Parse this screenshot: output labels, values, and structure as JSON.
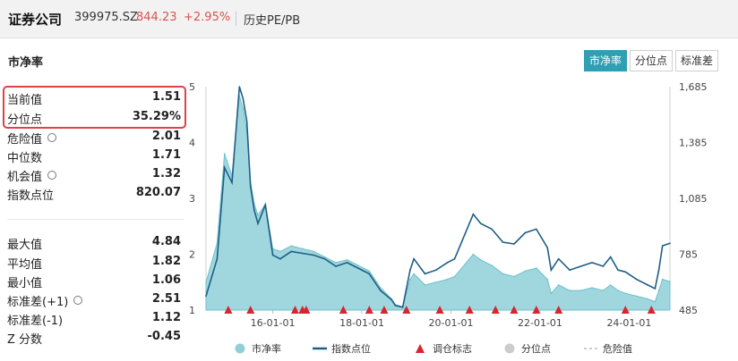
{
  "header": {
    "name": "证券公司",
    "code": "399975.SZ",
    "price": "844.23",
    "change": "+2.95%",
    "tab": "历史PE/PB"
  },
  "section_title": "市净率",
  "tabs": [
    {
      "label": "市净率",
      "active": true
    },
    {
      "label": "分位点",
      "active": false
    },
    {
      "label": "标准差",
      "active": false
    }
  ],
  "stats": {
    "current": {
      "label": "当前值",
      "value": "1.51"
    },
    "percentile": {
      "label": "分位点",
      "value": "35.29%"
    },
    "danger": {
      "label": "危险值",
      "value": "2.01"
    },
    "median": {
      "label": "中位数",
      "value": "1.71"
    },
    "opportunity": {
      "label": "机会值",
      "value": "1.32"
    },
    "index_point": {
      "label": "指数点位",
      "value": "820.07"
    },
    "max": {
      "label": "最大值",
      "value": "4.84"
    },
    "mean": {
      "label": "平均值",
      "value": "1.82"
    },
    "min": {
      "label": "最小值",
      "value": "1.06"
    },
    "std_plus": {
      "label": "标准差(+1)",
      "value": "2.51"
    },
    "std_minus": {
      "label": "标准差(-1)",
      "value": "1.12"
    },
    "zscore": {
      "label": "Z 分数",
      "value": "-0.45"
    }
  },
  "colors": {
    "accent": "#2f9fb3",
    "area_fill": "#8fd0d8",
    "index_line": "#1f5f86",
    "marker": "#d9232e",
    "price_red": "#d9534f"
  },
  "chart_data": {
    "type": "area",
    "x_ticks": [
      "16-01-01",
      "18-01-01",
      "20-01-01",
      "22-01-01",
      "24-01-01"
    ],
    "y_left_ticks": [
      "1",
      "2",
      "3",
      "4",
      "5"
    ],
    "y_right_ticks": [
      "485",
      "785",
      "1,085",
      "1,385",
      "1,685"
    ],
    "y_left_range": [
      1,
      5
    ],
    "y_right_range": [
      485,
      1685
    ],
    "x_range": [
      "2014-07-01",
      "2024-12-01"
    ],
    "series": [
      {
        "name": "市净率",
        "axis": "left",
        "points": [
          [
            "2014-07",
            1.5
          ],
          [
            "2014-10",
            2.2
          ],
          [
            "2014-12",
            3.8
          ],
          [
            "2015-02",
            3.4
          ],
          [
            "2015-04",
            4.84
          ],
          [
            "2015-05",
            4.6
          ],
          [
            "2015-06",
            4.2
          ],
          [
            "2015-07",
            3.3
          ],
          [
            "2015-08",
            2.9
          ],
          [
            "2015-09",
            2.7
          ],
          [
            "2015-11",
            2.9
          ],
          [
            "2016-01",
            2.1
          ],
          [
            "2016-03",
            2.05
          ],
          [
            "2016-06",
            2.15
          ],
          [
            "2016-09",
            2.1
          ],
          [
            "2016-12",
            2.05
          ],
          [
            "2017-03",
            1.95
          ],
          [
            "2017-06",
            1.85
          ],
          [
            "2017-09",
            1.9
          ],
          [
            "2017-12",
            1.8
          ],
          [
            "2018-03",
            1.7
          ],
          [
            "2018-06",
            1.4
          ],
          [
            "2018-09",
            1.2
          ],
          [
            "2018-10",
            1.1
          ],
          [
            "2018-12",
            1.06
          ],
          [
            "2019-02",
            1.55
          ],
          [
            "2019-03",
            1.65
          ],
          [
            "2019-06",
            1.45
          ],
          [
            "2019-09",
            1.5
          ],
          [
            "2019-12",
            1.55
          ],
          [
            "2020-02",
            1.6
          ],
          [
            "2020-07",
            2.0
          ],
          [
            "2020-09",
            1.9
          ],
          [
            "2020-12",
            1.8
          ],
          [
            "2021-03",
            1.65
          ],
          [
            "2021-06",
            1.6
          ],
          [
            "2021-09",
            1.7
          ],
          [
            "2021-12",
            1.75
          ],
          [
            "2022-03",
            1.55
          ],
          [
            "2022-04",
            1.3
          ],
          [
            "2022-06",
            1.45
          ],
          [
            "2022-09",
            1.35
          ],
          [
            "2022-12",
            1.35
          ],
          [
            "2023-03",
            1.4
          ],
          [
            "2023-06",
            1.35
          ],
          [
            "2023-08",
            1.45
          ],
          [
            "2023-10",
            1.35
          ],
          [
            "2023-12",
            1.3
          ],
          [
            "2024-03",
            1.25
          ],
          [
            "2024-06",
            1.2
          ],
          [
            "2024-08",
            1.15
          ],
          [
            "2024-09",
            1.35
          ],
          [
            "2024-10",
            1.55
          ],
          [
            "2024-12",
            1.51
          ]
        ]
      },
      {
        "name": "指数点位",
        "axis": "right",
        "points": [
          [
            "2014-07",
            560
          ],
          [
            "2014-10",
            760
          ],
          [
            "2014-12",
            1250
          ],
          [
            "2015-02",
            1170
          ],
          [
            "2015-04",
            1685
          ],
          [
            "2015-05",
            1620
          ],
          [
            "2015-06",
            1500
          ],
          [
            "2015-07",
            1150
          ],
          [
            "2015-08",
            1020
          ],
          [
            "2015-09",
            950
          ],
          [
            "2015-11",
            1050
          ],
          [
            "2016-01",
            780
          ],
          [
            "2016-03",
            760
          ],
          [
            "2016-06",
            800
          ],
          [
            "2016-09",
            790
          ],
          [
            "2016-12",
            780
          ],
          [
            "2017-03",
            760
          ],
          [
            "2017-06",
            720
          ],
          [
            "2017-09",
            740
          ],
          [
            "2017-12",
            710
          ],
          [
            "2018-03",
            680
          ],
          [
            "2018-06",
            590
          ],
          [
            "2018-09",
            540
          ],
          [
            "2018-10",
            510
          ],
          [
            "2018-12",
            500
          ],
          [
            "2019-02",
            700
          ],
          [
            "2019-03",
            760
          ],
          [
            "2019-06",
            680
          ],
          [
            "2019-09",
            700
          ],
          [
            "2019-12",
            740
          ],
          [
            "2020-02",
            760
          ],
          [
            "2020-07",
            1000
          ],
          [
            "2020-09",
            950
          ],
          [
            "2020-12",
            920
          ],
          [
            "2021-03",
            850
          ],
          [
            "2021-06",
            840
          ],
          [
            "2021-09",
            900
          ],
          [
            "2021-12",
            920
          ],
          [
            "2022-03",
            820
          ],
          [
            "2022-04",
            700
          ],
          [
            "2022-06",
            760
          ],
          [
            "2022-09",
            700
          ],
          [
            "2022-12",
            720
          ],
          [
            "2023-03",
            740
          ],
          [
            "2023-06",
            720
          ],
          [
            "2023-08",
            770
          ],
          [
            "2023-10",
            700
          ],
          [
            "2023-12",
            690
          ],
          [
            "2024-03",
            650
          ],
          [
            "2024-06",
            620
          ],
          [
            "2024-08",
            600
          ],
          [
            "2024-09",
            700
          ],
          [
            "2024-10",
            830
          ],
          [
            "2024-12",
            844
          ]
        ]
      }
    ],
    "rebalance_markers": [
      "2015-01",
      "2015-07",
      "2016-07",
      "2016-09",
      "2016-10",
      "2017-08",
      "2018-03",
      "2018-07",
      "2019-01",
      "2019-10",
      "2020-06",
      "2021-01",
      "2021-06",
      "2021-12",
      "2022-06",
      "2023-12",
      "2024-07"
    ],
    "legend": [
      {
        "label": "市净率",
        "icon": "circle",
        "color": "#8fd0d8"
      },
      {
        "label": "指数点位",
        "icon": "line",
        "color": "#1f5f86"
      },
      {
        "label": "调仓标志",
        "icon": "triangle",
        "color": "#d9232e"
      },
      {
        "label": "分位点",
        "icon": "circle",
        "color": "#cccccc"
      },
      {
        "label": "危险值",
        "icon": "dash",
        "color": "#cccccc"
      }
    ]
  }
}
